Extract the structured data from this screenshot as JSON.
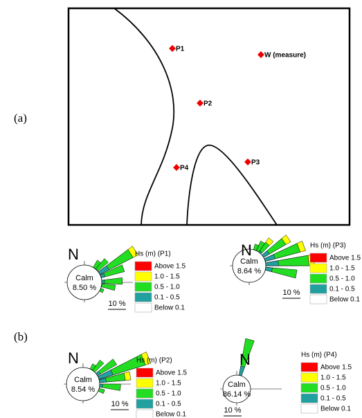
{
  "panels": {
    "a": "(a)",
    "b": "(b)"
  },
  "map": {
    "points": [
      {
        "label": "P1"
      },
      {
        "label": "W (measure)"
      },
      {
        "label": "P2"
      },
      {
        "label": "P3"
      },
      {
        "label": "P4"
      }
    ]
  },
  "roses": [
    {
      "north": "N",
      "title": "Hs (m) (P1)",
      "calm_label": "Calm",
      "calm_value": "8.50 %",
      "scale": "10 %",
      "legend": [
        "Above 1.5",
        "1.0 - 1.5",
        "0.5 - 1.0",
        "0.1 - 0.5",
        "Below 0.1"
      ]
    },
    {
      "north": "N",
      "title": "Hs (m) (P3)",
      "calm_label": "Calm",
      "calm_value": "8.64 %",
      "scale": "10 %",
      "legend": [
        "Above 1.5",
        "1.0 - 1.5",
        "0.5 - 1.0",
        "0.1 - 0.5",
        "Below 0.1"
      ]
    },
    {
      "north": "N",
      "title": "Hs (m) (P2)",
      "calm_label": "Calm",
      "calm_value": "8.54 %",
      "scale": "10 %",
      "legend": [
        "Above 1.5",
        "1.0 - 1.5",
        "0.5 - 1.0",
        "0.1 - 0.5",
        "Below 0.1"
      ]
    },
    {
      "north": "N",
      "title": "Hs (m) (P4)",
      "calm_label": "Calm",
      "calm_value": "86.14 %",
      "scale": "10 %",
      "legend": [
        "Above 1.5",
        "1.0 - 1.5",
        "0.5 - 1.0",
        "0.1 - 0.5",
        "Below 0.1"
      ]
    }
  ]
}
